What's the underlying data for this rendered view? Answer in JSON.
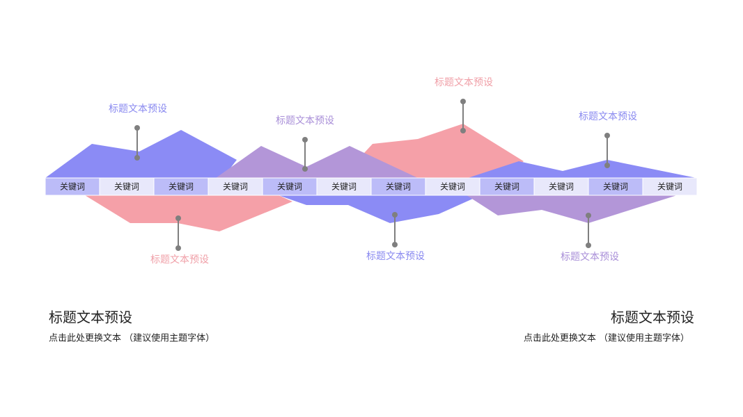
{
  "keywords": [
    "关键词",
    "关键词",
    "关键词",
    "关键词",
    "关键词",
    "关键词",
    "关键词",
    "关键词",
    "关键词",
    "关键词",
    "关键词",
    "关键词"
  ],
  "callouts": [
    "标题文本预设",
    "标题文本预设",
    "标题文本预设",
    "标题文本预设",
    "标题文本预设",
    "标题文本预设",
    "标题文本预设"
  ],
  "left": {
    "title": "标题文本预设",
    "subtitle": "点击此处更换文本 （建议使用主题字体）"
  },
  "right": {
    "title": "标题文本预设",
    "subtitle": "点击此处更换文本 （建议使用主题字体）"
  }
}
